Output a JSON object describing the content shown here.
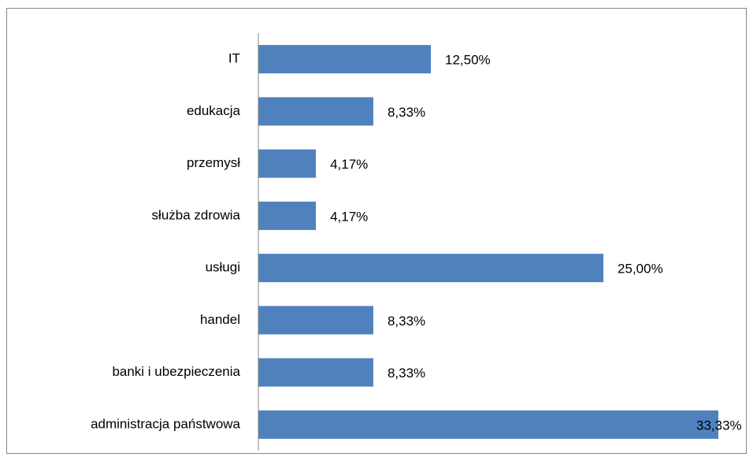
{
  "chart_data": {
    "type": "bar",
    "orientation": "horizontal",
    "categories": [
      "IT",
      "edukacja",
      "przemysł",
      "służba zdrowia",
      "usługi",
      "handel",
      "banki i ubezpieczenia",
      "administracja państwowa"
    ],
    "values": [
      12.5,
      8.33,
      4.17,
      4.17,
      25,
      8.33,
      8.33,
      33.33
    ],
    "value_labels": [
      "12,50%",
      "8,33%",
      "4,17%",
      "4,17%",
      "25,00%",
      "8,33%",
      "8,33%",
      "33,33%"
    ],
    "color": "#4f81bd"
  }
}
